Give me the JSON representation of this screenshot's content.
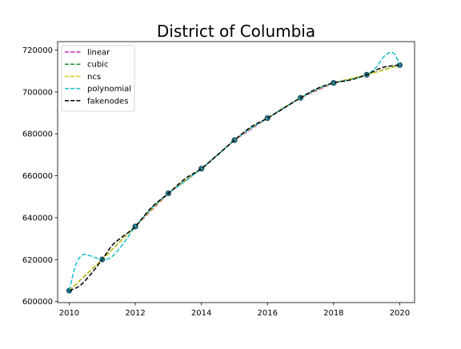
{
  "chart_data": {
    "type": "line",
    "title": "District of Columbia",
    "xlabel": "",
    "ylabel": "",
    "xlim": [
      2009.65,
      2020.45
    ],
    "ylim": [
      599500,
      724000
    ],
    "x_ticks": [
      "2010",
      "2012",
      "2014",
      "2016",
      "2018",
      "2020"
    ],
    "x_tick_values": [
      2010,
      2012,
      2014,
      2016,
      2018,
      2020
    ],
    "y_ticks": [
      "600000",
      "620000",
      "640000",
      "660000",
      "680000",
      "700000",
      "720000"
    ],
    "y_tick_values": [
      600000,
      620000,
      640000,
      660000,
      680000,
      700000,
      720000
    ],
    "grid": false,
    "legend_position": "top-left",
    "points": {
      "x": [
        2010,
        2011,
        2012,
        2013,
        2014,
        2015,
        2016,
        2017,
        2018,
        2019,
        2020
      ],
      "y": [
        605200,
        620100,
        635800,
        651600,
        663400,
        677000,
        687500,
        697200,
        704300,
        708200,
        712800
      ],
      "color": "#1f6f8b"
    },
    "series": [
      {
        "name": "linear",
        "color": "#c020c0",
        "x": [
          2010,
          2011,
          2012,
          2013,
          2014,
          2015,
          2016,
          2017,
          2018,
          2019,
          2020
        ],
        "y": [
          605200,
          620100,
          635800,
          651600,
          663400,
          677000,
          687500,
          697200,
          704300,
          708200,
          712800
        ]
      },
      {
        "name": "cubic",
        "color": "#228b22",
        "x": [
          2010,
          2010.5,
          2011,
          2011.5,
          2012,
          2012.5,
          2013,
          2013.5,
          2014,
          2014.5,
          2015,
          2015.5,
          2016,
          2016.5,
          2017,
          2017.5,
          2018,
          2018.5,
          2019,
          2019.5,
          2020
        ],
        "y": [
          605200,
          612700,
          620100,
          628100,
          635800,
          644100,
          651600,
          657700,
          663400,
          670000,
          677000,
          682700,
          687500,
          692600,
          697200,
          701200,
          704300,
          706100,
          708200,
          710500,
          712800
        ]
      },
      {
        "name": "ncs",
        "color": "#c8c814",
        "x": [
          2010,
          2010.5,
          2011,
          2011.5,
          2012,
          2012.5,
          2013,
          2013.5,
          2014,
          2014.5,
          2015,
          2015.5,
          2016,
          2016.5,
          2017,
          2017.5,
          2018,
          2018.5,
          2019,
          2019.5,
          2020
        ],
        "y": [
          605200,
          612800,
          620100,
          628000,
          635800,
          644000,
          651600,
          657800,
          663400,
          670100,
          677000,
          682600,
          687500,
          692500,
          697200,
          701100,
          704300,
          706300,
          708200,
          710400,
          712800
        ]
      },
      {
        "name": "polynomial",
        "color": "#17becf",
        "x": [
          2010,
          2010.2,
          2010.4,
          2010.6,
          2010.8,
          2011,
          2011.2,
          2011.4,
          2011.7,
          2012,
          2012.5,
          2013,
          2013.5,
          2014,
          2014.5,
          2015,
          2015.5,
          2016,
          2016.5,
          2017,
          2017.5,
          2018,
          2018.5,
          2019,
          2019.3,
          2019.5,
          2019.7,
          2019.85,
          2020
        ],
        "y": [
          605200,
          617500,
          622200,
          622000,
          620900,
          620100,
          620500,
          623000,
          629000,
          635800,
          644600,
          651600,
          657300,
          663400,
          670200,
          677000,
          682700,
          687500,
          692400,
          697200,
          701300,
          704300,
          705800,
          708200,
          712000,
          716500,
          718800,
          718000,
          712800
        ]
      },
      {
        "name": "fakenodes",
        "color": "#000000",
        "x": [
          2010,
          2010.3,
          2010.6,
          2011,
          2011.3,
          2011.6,
          2012,
          2012.5,
          2013,
          2013.5,
          2014,
          2014.5,
          2015,
          2015.5,
          2016,
          2016.5,
          2017,
          2017.5,
          2018,
          2018.5,
          2019,
          2019.3,
          2019.6,
          2020
        ],
        "y": [
          605200,
          607300,
          612000,
          620100,
          626800,
          630800,
          635800,
          645000,
          651600,
          658500,
          663400,
          670100,
          677000,
          683300,
          687500,
          692300,
          697200,
          701600,
          704300,
          705700,
          708200,
          710600,
          712100,
          712800
        ]
      }
    ]
  }
}
